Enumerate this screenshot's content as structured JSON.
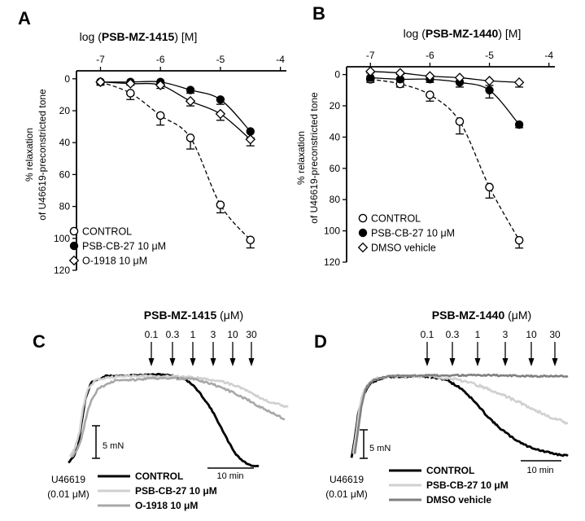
{
  "chart_data": [
    {
      "panel": "A",
      "type": "scatter",
      "xlabel_prefix": "log (",
      "xlabel_bold": "PSB-MZ-1415",
      "xlabel_suffix": ") [M]",
      "ylabel_line1": "% relaxation",
      "ylabel_line2": "of U46619-preconstricted tone",
      "xlim": [
        -7.4,
        -3.9
      ],
      "ylim": [
        -5,
        120
      ],
      "xticks": [
        -7,
        -6,
        -5,
        -4
      ],
      "xtick_labels": [
        "-7",
        "-6",
        "-5",
        "-4"
      ],
      "yticks": [
        0,
        20,
        40,
        60,
        80,
        100,
        120
      ],
      "ytick_labels": [
        "0",
        "20",
        "40",
        "60",
        "80",
        "100",
        "120"
      ],
      "legend": "bottom-left",
      "series": [
        {
          "name": "CONTROL",
          "marker": "open-circle",
          "line": "dashed",
          "x": [
            -7,
            -6.5,
            -6,
            -5.5,
            -5,
            -4.5
          ],
          "y": [
            2,
            9,
            23,
            37,
            79,
            101
          ],
          "err": [
            2,
            4,
            6,
            7,
            5,
            5
          ]
        },
        {
          "name": "PSB-CB-27 10 μM",
          "marker": "filled-circle",
          "line": "solid",
          "x": [
            -7,
            -6.5,
            -6,
            -5.5,
            -5,
            -4.5
          ],
          "y": [
            2,
            2,
            2,
            7,
            13,
            33
          ],
          "err": [
            1,
            1,
            1,
            2,
            3,
            4
          ]
        },
        {
          "name": "O-1918 10 μM",
          "marker": "open-diamond",
          "line": "solid",
          "x": [
            -7,
            -6.5,
            -6,
            -5.5,
            -5,
            -4.5
          ],
          "y": [
            2,
            3,
            4,
            14,
            22,
            38
          ],
          "err": [
            1,
            1,
            2,
            3,
            4,
            4
          ]
        }
      ]
    },
    {
      "panel": "B",
      "type": "scatter",
      "xlabel_prefix": "log (",
      "xlabel_bold": "PSB-MZ-1440",
      "xlabel_suffix": ") [M]",
      "ylabel_line1": "% relaxation",
      "ylabel_line2": "of U46619-preconstricted tone",
      "xlim": [
        -7.4,
        -3.9
      ],
      "ylim": [
        -5,
        120
      ],
      "xticks": [
        -7,
        -6,
        -5,
        -4
      ],
      "xtick_labels": [
        "-7",
        "-6",
        "-5",
        "-4"
      ],
      "yticks": [
        0,
        20,
        40,
        60,
        80,
        100,
        120
      ],
      "ytick_labels": [
        "0",
        "20",
        "40",
        "60",
        "80",
        "100",
        "120"
      ],
      "legend": "bottom-left",
      "series": [
        {
          "name": "CONTROL",
          "marker": "open-circle",
          "line": "dashed",
          "x": [
            -7,
            -6.5,
            -6,
            -5.5,
            -5,
            -4.5
          ],
          "y": [
            3,
            6,
            13,
            30,
            72,
            106
          ],
          "err": [
            2,
            2,
            4,
            8,
            7,
            5
          ]
        },
        {
          "name": "PSB-CB-27 10 μM",
          "marker": "filled-circle",
          "line": "solid",
          "x": [
            -7,
            -6.5,
            -6,
            -5.5,
            -5,
            -4.5
          ],
          "y": [
            2,
            3,
            3,
            5,
            10,
            32
          ],
          "err": [
            1,
            1,
            2,
            3,
            5,
            2
          ]
        },
        {
          "name": "DMSO vehicle",
          "marker": "open-diamond",
          "line": "solid",
          "x": [
            -7,
            -6.5,
            -6,
            -5.5,
            -5,
            -4.5
          ],
          "y": [
            -2,
            -1,
            1,
            2,
            4,
            5
          ],
          "err": [
            1,
            1,
            2,
            2,
            3,
            3
          ]
        }
      ]
    }
  ],
  "panels": {
    "C": {
      "letter": "C",
      "compound": "PSB-MZ-1415",
      "unit": " (μM)",
      "concentrations": [
        "0.1",
        "0.3",
        "1",
        "3",
        "10",
        "30"
      ],
      "scale_force": "5 mN",
      "scale_time": "10 min",
      "agonist_line1": "U46619",
      "agonist_line2": "(0.01 μM)",
      "legend": [
        "CONTROL",
        "PSB-CB-27 10 μM",
        "O-1918 10 μM"
      ],
      "colors": [
        "#000000",
        "#d0d0d0",
        "#a8a8a8"
      ]
    },
    "D": {
      "letter": "D",
      "compound": "PSB-MZ-1440",
      "unit": " (μM)",
      "concentrations": [
        "0.1",
        "0.3",
        "1",
        "3",
        "10",
        "30"
      ],
      "scale_force": "5 mN",
      "scale_time": "10 min",
      "agonist_line1": "U46619",
      "agonist_line2": "(0.01 μM)",
      "legend": [
        "CONTROL",
        "PSB-CB-27 10 μM",
        "DMSO vehicle"
      ],
      "colors": [
        "#000000",
        "#d0d0d0",
        "#808080"
      ]
    }
  }
}
